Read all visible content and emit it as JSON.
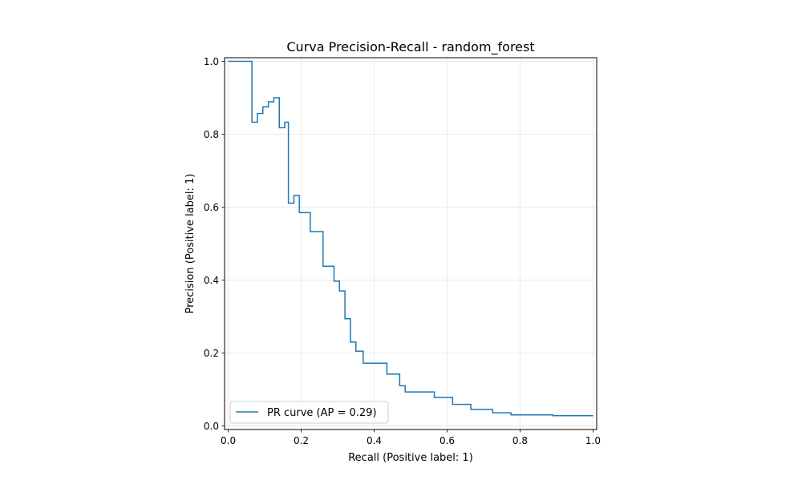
{
  "chart_data": {
    "type": "line",
    "title": "Curva Precision-Recall - random_forest",
    "xlabel": "Recall (Positive label: 1)",
    "ylabel": "Precision (Positive label: 1)",
    "xlim": [
      -0.01,
      1.01
    ],
    "ylim": [
      -0.01,
      1.01
    ],
    "x_ticks": [
      "0.0",
      "0.2",
      "0.4",
      "0.6",
      "0.8",
      "1.0"
    ],
    "y_ticks": [
      "0.0",
      "0.2",
      "0.4",
      "0.6",
      "0.8",
      "1.0"
    ],
    "grid": true,
    "legend_position": "lower-left",
    "colors": {
      "series": "#1f77b4",
      "grid": "#e5e5e5",
      "axes": "#000000"
    },
    "series": [
      {
        "name": "PR curve (AP = 0.29)",
        "drawstyle": "steps-post",
        "x": [
          0.0,
          0.065,
          0.065,
          0.08,
          0.095,
          0.11,
          0.125,
          0.14,
          0.14,
          0.155,
          0.165,
          0.18,
          0.195,
          0.225,
          0.26,
          0.29,
          0.305,
          0.32,
          0.335,
          0.35,
          0.37,
          0.435,
          0.47,
          0.485,
          0.565,
          0.615,
          0.665,
          0.725,
          0.775,
          0.89,
          1.0
        ],
        "y": [
          1.0,
          1.0,
          0.833,
          0.857,
          0.875,
          0.889,
          0.9,
          0.9,
          0.818,
          0.833,
          0.611,
          0.632,
          0.585,
          0.533,
          0.438,
          0.397,
          0.37,
          0.294,
          0.23,
          0.205,
          0.172,
          0.142,
          0.11,
          0.093,
          0.078,
          0.059,
          0.045,
          0.036,
          0.03,
          0.028,
          0.028
        ]
      }
    ]
  }
}
